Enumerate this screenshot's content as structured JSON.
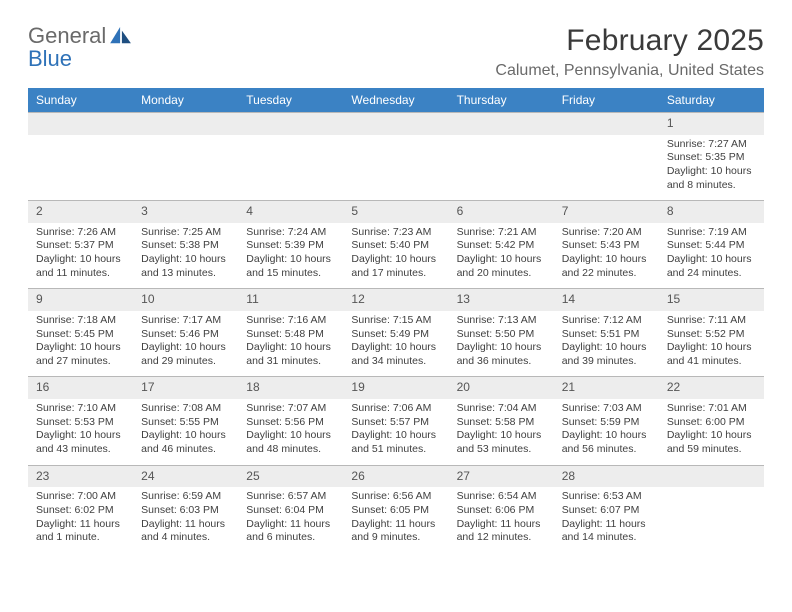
{
  "logo": {
    "line1": "General",
    "line2": "Blue"
  },
  "title": "February 2025",
  "location": "Calumet, Pennsylvania, United States",
  "colors": {
    "header_bg": "#3b82c4",
    "header_fg": "#ffffff",
    "daynum_bg": "#ededed",
    "border": "#b8b8b8",
    "text": "#404040",
    "title": "#3a3a3a",
    "subtitle": "#6a6a6a",
    "logo_general": "#6a6a6a",
    "logo_blue": "#2f72b8"
  },
  "day_headers": [
    "Sunday",
    "Monday",
    "Tuesday",
    "Wednesday",
    "Thursday",
    "Friday",
    "Saturday"
  ],
  "weeks": [
    {
      "nums": [
        "",
        "",
        "",
        "",
        "",
        "",
        "1"
      ],
      "cells": [
        "",
        "",
        "",
        "",
        "",
        "",
        "Sunrise: 7:27 AM\nSunset: 5:35 PM\nDaylight: 10 hours and 8 minutes."
      ]
    },
    {
      "nums": [
        "2",
        "3",
        "4",
        "5",
        "6",
        "7",
        "8"
      ],
      "cells": [
        "Sunrise: 7:26 AM\nSunset: 5:37 PM\nDaylight: 10 hours and 11 minutes.",
        "Sunrise: 7:25 AM\nSunset: 5:38 PM\nDaylight: 10 hours and 13 minutes.",
        "Sunrise: 7:24 AM\nSunset: 5:39 PM\nDaylight: 10 hours and 15 minutes.",
        "Sunrise: 7:23 AM\nSunset: 5:40 PM\nDaylight: 10 hours and 17 minutes.",
        "Sunrise: 7:21 AM\nSunset: 5:42 PM\nDaylight: 10 hours and 20 minutes.",
        "Sunrise: 7:20 AM\nSunset: 5:43 PM\nDaylight: 10 hours and 22 minutes.",
        "Sunrise: 7:19 AM\nSunset: 5:44 PM\nDaylight: 10 hours and 24 minutes."
      ]
    },
    {
      "nums": [
        "9",
        "10",
        "11",
        "12",
        "13",
        "14",
        "15"
      ],
      "cells": [
        "Sunrise: 7:18 AM\nSunset: 5:45 PM\nDaylight: 10 hours and 27 minutes.",
        "Sunrise: 7:17 AM\nSunset: 5:46 PM\nDaylight: 10 hours and 29 minutes.",
        "Sunrise: 7:16 AM\nSunset: 5:48 PM\nDaylight: 10 hours and 31 minutes.",
        "Sunrise: 7:15 AM\nSunset: 5:49 PM\nDaylight: 10 hours and 34 minutes.",
        "Sunrise: 7:13 AM\nSunset: 5:50 PM\nDaylight: 10 hours and 36 minutes.",
        "Sunrise: 7:12 AM\nSunset: 5:51 PM\nDaylight: 10 hours and 39 minutes.",
        "Sunrise: 7:11 AM\nSunset: 5:52 PM\nDaylight: 10 hours and 41 minutes."
      ]
    },
    {
      "nums": [
        "16",
        "17",
        "18",
        "19",
        "20",
        "21",
        "22"
      ],
      "cells": [
        "Sunrise: 7:10 AM\nSunset: 5:53 PM\nDaylight: 10 hours and 43 minutes.",
        "Sunrise: 7:08 AM\nSunset: 5:55 PM\nDaylight: 10 hours and 46 minutes.",
        "Sunrise: 7:07 AM\nSunset: 5:56 PM\nDaylight: 10 hours and 48 minutes.",
        "Sunrise: 7:06 AM\nSunset: 5:57 PM\nDaylight: 10 hours and 51 minutes.",
        "Sunrise: 7:04 AM\nSunset: 5:58 PM\nDaylight: 10 hours and 53 minutes.",
        "Sunrise: 7:03 AM\nSunset: 5:59 PM\nDaylight: 10 hours and 56 minutes.",
        "Sunrise: 7:01 AM\nSunset: 6:00 PM\nDaylight: 10 hours and 59 minutes."
      ]
    },
    {
      "nums": [
        "23",
        "24",
        "25",
        "26",
        "27",
        "28",
        ""
      ],
      "cells": [
        "Sunrise: 7:00 AM\nSunset: 6:02 PM\nDaylight: 11 hours and 1 minute.",
        "Sunrise: 6:59 AM\nSunset: 6:03 PM\nDaylight: 11 hours and 4 minutes.",
        "Sunrise: 6:57 AM\nSunset: 6:04 PM\nDaylight: 11 hours and 6 minutes.",
        "Sunrise: 6:56 AM\nSunset: 6:05 PM\nDaylight: 11 hours and 9 minutes.",
        "Sunrise: 6:54 AM\nSunset: 6:06 PM\nDaylight: 11 hours and 12 minutes.",
        "Sunrise: 6:53 AM\nSunset: 6:07 PM\nDaylight: 11 hours and 14 minutes.",
        ""
      ]
    }
  ]
}
